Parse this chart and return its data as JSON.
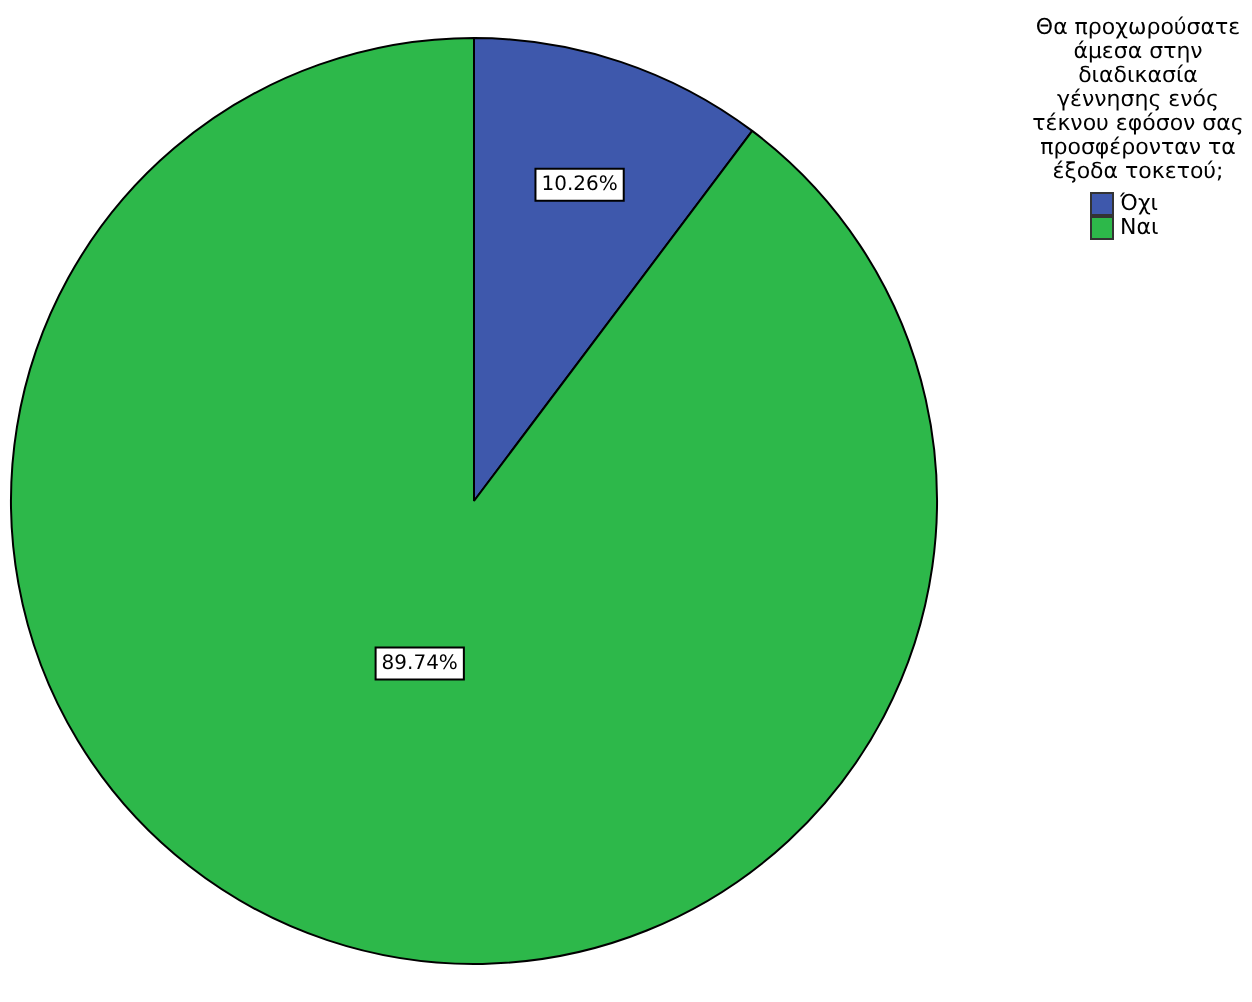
{
  "chart_data": {
    "type": "pie",
    "legend_title": "Θα προχωρούσατε άμεσα στην διαδικασία γέννησης ενός τέκνου εφόσον σας προσφέρονταν τα έξοδα τοκετού;",
    "categories": [
      "Όχι",
      "Ναι"
    ],
    "values": [
      10.26,
      89.74
    ],
    "colors": [
      "#3e58ac",
      "#2db84a"
    ],
    "value_labels": [
      "10.26%",
      "89.74%"
    ],
    "legend": "top right"
  }
}
